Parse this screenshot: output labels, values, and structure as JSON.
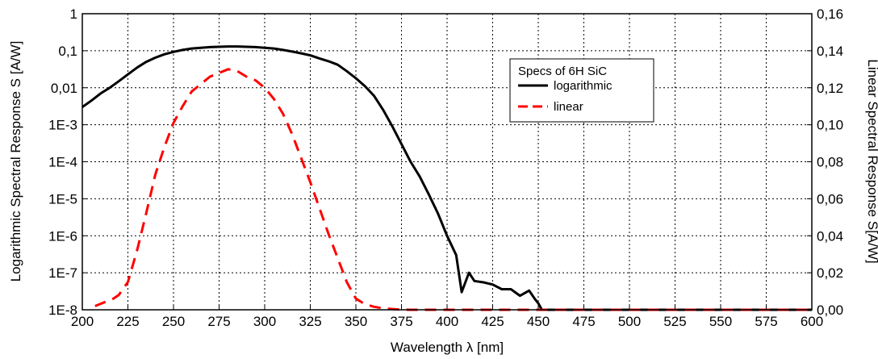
{
  "chart_data": {
    "type": "line",
    "xlabel": "Wavelength λ [nm]",
    "ylabel_left": "Logarithmic Spectral Response S [A/W]",
    "ylabel_right": "Linear Spectral Response S[A/W]",
    "x_ticks": [
      "200",
      "225",
      "250",
      "275",
      "300",
      "325",
      "350",
      "375",
      "400",
      "425",
      "450",
      "475",
      "500",
      "525",
      "550",
      "575",
      "600"
    ],
    "xlim": [
      200,
      600
    ],
    "y_left_scale": "log",
    "y_left_ticks": [
      "1E-8",
      "1E-7",
      "1E-6",
      "1E-5",
      "1E-4",
      "1E-3",
      "0,01",
      "0,1",
      "1"
    ],
    "y_left_lim": [
      1e-08,
      1
    ],
    "y_right_ticks": [
      "0,00",
      "0,02",
      "0,04",
      "0,06",
      "0,08",
      "0,10",
      "0,12",
      "0,14",
      "0,16"
    ],
    "y_right_lim": [
      0,
      0.16
    ],
    "grid": true,
    "legend": {
      "title": "Specs of 6H SiC",
      "position": "top-right",
      "entries": [
        "logarithmic",
        "linear"
      ]
    },
    "series": [
      {
        "name": "logarithmic",
        "axis": "left",
        "color": "#000000",
        "style": "solid",
        "x": [
          200,
          205,
          210,
          215,
          220,
          225,
          230,
          235,
          240,
          245,
          250,
          255,
          260,
          265,
          270,
          275,
          280,
          285,
          290,
          295,
          300,
          305,
          310,
          315,
          320,
          325,
          330,
          335,
          340,
          345,
          350,
          355,
          360,
          365,
          370,
          375,
          380,
          385,
          390,
          395,
          400,
          405,
          408,
          412,
          415,
          420,
          425,
          430,
          435,
          440,
          445,
          448,
          450,
          452,
          455,
          460,
          600
        ],
        "y": [
          0.003,
          0.0045,
          0.007,
          0.01,
          0.015,
          0.023,
          0.035,
          0.05,
          0.065,
          0.08,
          0.093,
          0.105,
          0.115,
          0.12,
          0.125,
          0.128,
          0.13,
          0.13,
          0.128,
          0.125,
          0.12,
          0.115,
          0.105,
          0.095,
          0.085,
          0.075,
          0.062,
          0.052,
          0.042,
          0.028,
          0.018,
          0.011,
          0.006,
          0.0025,
          0.0009,
          0.0003,
          0.0001,
          4e-05,
          1.3e-05,
          4e-06,
          1e-06,
          3e-07,
          3e-08,
          1e-07,
          6e-08,
          5.5e-08,
          4.8e-08,
          3.6e-08,
          3.6e-08,
          2.4e-08,
          3.3e-08,
          2e-08,
          1.5e-08,
          1e-08,
          1e-08,
          1e-08,
          1e-08
        ]
      },
      {
        "name": "linear",
        "axis": "right",
        "color": "#ff0000",
        "style": "dashed",
        "x": [
          207,
          212,
          217,
          220,
          225,
          230,
          235,
          240,
          245,
          250,
          255,
          260,
          265,
          270,
          275,
          280,
          285,
          290,
          295,
          300,
          305,
          310,
          315,
          320,
          325,
          330,
          335,
          340,
          345,
          350,
          355,
          360,
          365,
          370,
          375,
          380,
          600
        ],
        "y": [
          0.002,
          0.004,
          0.006,
          0.008,
          0.015,
          0.032,
          0.052,
          0.073,
          0.088,
          0.101,
          0.11,
          0.118,
          0.122,
          0.126,
          0.128,
          0.13,
          0.129,
          0.126,
          0.124,
          0.12,
          0.114,
          0.106,
          0.095,
          0.082,
          0.069,
          0.055,
          0.041,
          0.028,
          0.015,
          0.006,
          0.003,
          0.0016,
          0.0008,
          0.0004,
          0.0001,
          0,
          0
        ]
      }
    ]
  }
}
